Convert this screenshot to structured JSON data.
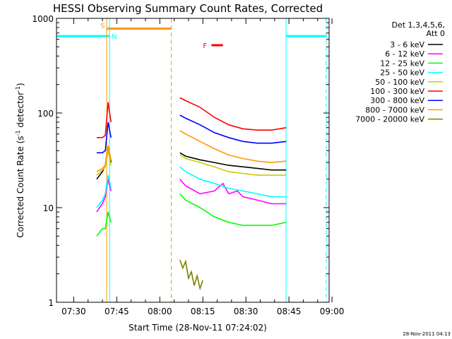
{
  "chart_data": {
    "type": "line",
    "title": "HESSI Observing Summary Count Rates, Corrected",
    "xlabel": "Start Time (28-Nov-11 07:24:02)",
    "ylabel": "Corrected Count Rate (s",
    "ylabel_sup1": "-1",
    "ylabel_mid": " detector",
    "ylabel_sup2": "-1",
    "ylabel_end": ")",
    "x_ticks": [
      "07:30",
      "07:45",
      "08:00",
      "08:15",
      "08:30",
      "08:45",
      "09:00"
    ],
    "y_ticks": [
      "1",
      "10",
      "100",
      "1000"
    ],
    "ylim": [
      1,
      1000
    ],
    "y_scale": "log",
    "xlim_minutes": [
      0,
      95
    ],
    "legend_header_1": "Det 1,3,4,5,6,",
    "legend_header_2": "Att 0",
    "legend_position": "right, outside plot",
    "timestamp": "28-Nov-2011 04:13",
    "series": [
      {
        "name": "3 - 6 keV",
        "color": "#000000",
        "x": [
          14,
          16,
          17,
          18,
          19,
          43,
          45,
          50,
          55,
          60,
          65,
          70,
          75,
          80
        ],
        "y": [
          20,
          24,
          28,
          45,
          30,
          38,
          35,
          32,
          30,
          28,
          27,
          26,
          25,
          25
        ]
      },
      {
        "name": "6 - 12 keV",
        "color": "#ff00ff",
        "x": [
          14,
          16,
          17,
          18,
          19,
          43,
          45,
          50,
          55,
          58,
          60,
          63,
          65,
          70,
          75,
          80
        ],
        "y": [
          9,
          11,
          13,
          20,
          15,
          20,
          17,
          14,
          15,
          18,
          14,
          15,
          13,
          12,
          11,
          11
        ]
      },
      {
        "name": "12 - 25 keV",
        "color": "#00ff00",
        "x": [
          14,
          16,
          17,
          18,
          19,
          43,
          45,
          50,
          55,
          60,
          65,
          70,
          75,
          80
        ],
        "y": [
          5,
          6,
          6,
          9,
          7,
          14,
          12,
          10,
          8,
          7,
          6.5,
          6.5,
          6.5,
          7
        ]
      },
      {
        "name": "25 - 50 keV",
        "color": "#00ffff",
        "x": [
          14,
          16,
          17,
          18,
          19,
          43,
          45,
          50,
          55,
          60,
          65,
          70,
          75,
          80
        ],
        "y": [
          10,
          12,
          14,
          22,
          16,
          27,
          24,
          20,
          18,
          16,
          15,
          14,
          13,
          13
        ]
      },
      {
        "name": "50 - 100 keV",
        "color": "#cccc00",
        "x": [
          14,
          16,
          17,
          18,
          19,
          43,
          45,
          50,
          55,
          60,
          65,
          70,
          75,
          80
        ],
        "y": [
          22,
          25,
          27,
          40,
          28,
          36,
          33,
          30,
          27,
          24,
          23,
          22,
          22,
          22
        ]
      },
      {
        "name": "100 - 300 keV",
        "color": "#ff0000",
        "x": [
          14,
          16,
          17,
          18,
          19,
          43,
          45,
          50,
          55,
          60,
          65,
          70,
          75,
          80
        ],
        "y": [
          55,
          55,
          58,
          130,
          80,
          145,
          135,
          115,
          90,
          75,
          68,
          66,
          66,
          70
        ]
      },
      {
        "name": "300 - 800 keV",
        "color": "#0000ff",
        "x": [
          14,
          16,
          17,
          18,
          19,
          43,
          45,
          50,
          55,
          60,
          65,
          70,
          75,
          80
        ],
        "y": [
          38,
          38,
          40,
          80,
          55,
          95,
          88,
          75,
          62,
          55,
          50,
          48,
          48,
          50
        ]
      },
      {
        "name": "800 - 7000 keV",
        "color": "#ff9900",
        "x": [
          14,
          16,
          17,
          18,
          19,
          43,
          45,
          50,
          55,
          60,
          65,
          70,
          75,
          80
        ],
        "y": [
          24,
          26,
          28,
          45,
          32,
          65,
          60,
          50,
          42,
          36,
          33,
          31,
          30,
          31
        ]
      },
      {
        "name": "7000 - 20000 keV",
        "color": "#808000",
        "x": [
          43,
          44,
          45,
          46,
          47,
          48,
          49,
          50,
          51
        ],
        "y": [
          2.8,
          2.3,
          2.7,
          1.8,
          2.1,
          1.5,
          1.9,
          1.4,
          1.7
        ]
      }
    ],
    "annotations": {
      "S": {
        "label": "S",
        "color": "#ff9900",
        "x_start": 17.5,
        "x_end": 40,
        "y": 780
      },
      "N": {
        "label": "N",
        "color": "#00ffff",
        "x_start": 0,
        "x_end": 18.5,
        "y": 650
      },
      "N_right": {
        "color": "#00ffff",
        "x_start": 80,
        "x_end": 94,
        "y": 650
      },
      "F": {
        "label": "F",
        "color": "#ff0000",
        "x_start": 54,
        "x_end": 58,
        "y": 520
      }
    },
    "vertical_lines": [
      {
        "x": 17.5,
        "color": "#ff9900",
        "style": "solid"
      },
      {
        "x": 18.5,
        "color": "#00ffff",
        "style": "solid"
      },
      {
        "x": 40,
        "color": "#ff9900",
        "style": "dashed"
      },
      {
        "x": 80,
        "color": "#00ffff",
        "style": "solid"
      },
      {
        "x": 94,
        "color": "#00ffff",
        "style": "dashed"
      }
    ]
  }
}
